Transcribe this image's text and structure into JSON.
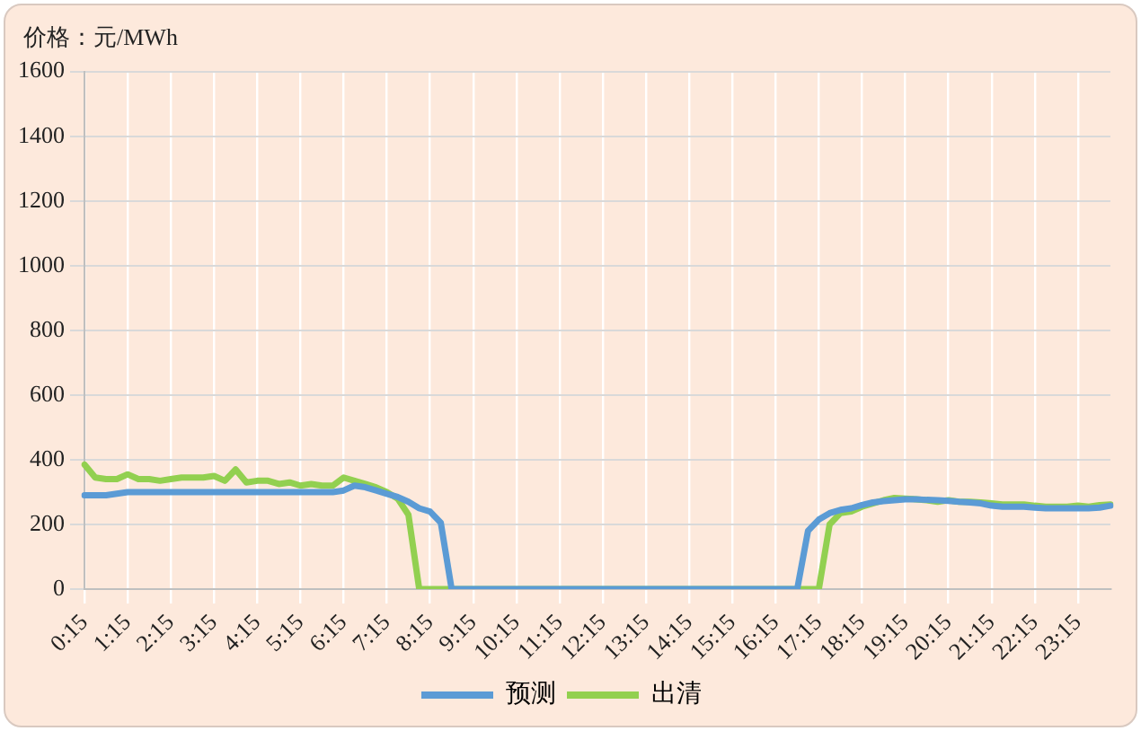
{
  "chart_data": {
    "type": "line",
    "ylabel": "价格：元/MWh",
    "categories": [
      "0:15",
      null,
      null,
      null,
      "1:15",
      null,
      null,
      null,
      "2:15",
      null,
      null,
      null,
      "3:15",
      null,
      null,
      null,
      "4:15",
      null,
      null,
      null,
      "5:15",
      null,
      null,
      null,
      "6:15",
      null,
      null,
      null,
      "7:15",
      null,
      null,
      null,
      "8:15",
      null,
      null,
      null,
      "9:15",
      null,
      null,
      null,
      "10:15",
      null,
      null,
      null,
      "11:15",
      null,
      null,
      null,
      "12:15",
      null,
      null,
      null,
      "13:15",
      null,
      null,
      null,
      "14:15",
      null,
      null,
      null,
      "15:15",
      null,
      null,
      null,
      "16:15",
      null,
      null,
      null,
      "17:15",
      null,
      null,
      null,
      "18:15",
      null,
      null,
      null,
      "19:15",
      null,
      null,
      null,
      "20:15",
      null,
      null,
      null,
      "21:15",
      null,
      null,
      null,
      "22:15",
      null,
      null,
      null,
      "23:15",
      null,
      null,
      null
    ],
    "series": [
      {
        "name": "预测",
        "color": "#5b9bd5",
        "values": [
          290,
          290,
          290,
          295,
          300,
          300,
          300,
          300,
          300,
          300,
          300,
          300,
          300,
          300,
          300,
          300,
          300,
          300,
          300,
          300,
          300,
          300,
          300,
          300,
          305,
          320,
          315,
          305,
          295,
          285,
          270,
          250,
          240,
          205,
          0,
          0,
          0,
          0,
          0,
          0,
          0,
          0,
          0,
          0,
          0,
          0,
          0,
          0,
          0,
          0,
          0,
          0,
          0,
          0,
          0,
          0,
          0,
          0,
          0,
          0,
          0,
          0,
          0,
          0,
          0,
          0,
          0,
          180,
          215,
          235,
          245,
          250,
          260,
          268,
          272,
          275,
          278,
          278,
          276,
          275,
          273,
          270,
          268,
          265,
          258,
          255,
          255,
          255,
          252,
          250,
          250,
          250,
          250,
          250,
          252,
          258
        ]
      },
      {
        "name": "出清",
        "color": "#92d050",
        "values": [
          385,
          345,
          340,
          340,
          355,
          340,
          340,
          335,
          340,
          345,
          345,
          345,
          350,
          335,
          370,
          330,
          335,
          335,
          325,
          330,
          320,
          325,
          320,
          320,
          345,
          335,
          325,
          315,
          300,
          280,
          230,
          0,
          0,
          0,
          0,
          0,
          0,
          0,
          0,
          0,
          0,
          0,
          0,
          0,
          0,
          0,
          0,
          0,
          0,
          0,
          0,
          0,
          0,
          0,
          0,
          0,
          0,
          0,
          0,
          0,
          0,
          0,
          0,
          0,
          0,
          0,
          0,
          0,
          0,
          200,
          235,
          240,
          255,
          265,
          275,
          282,
          280,
          278,
          275,
          270,
          275,
          270,
          270,
          268,
          265,
          262,
          262,
          262,
          258,
          255,
          255,
          255,
          258,
          255,
          260,
          262
        ]
      }
    ],
    "ylim": [
      0,
      1600
    ],
    "yticks": [
      0,
      200,
      400,
      600,
      800,
      1000,
      1200,
      1400,
      1600
    ],
    "grid": true,
    "legend": "bottom",
    "marker": "none",
    "line_style": "solid"
  }
}
